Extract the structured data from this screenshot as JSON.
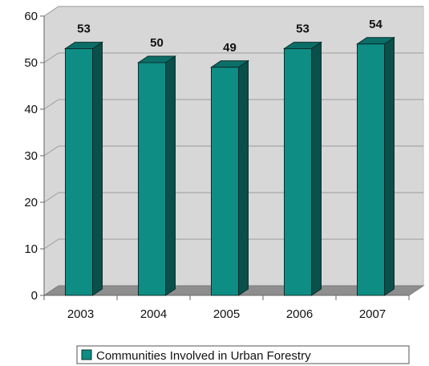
{
  "chart_data": {
    "type": "bar",
    "title": "",
    "xlabel": "",
    "ylabel": "",
    "categories": [
      "2003",
      "2004",
      "2005",
      "2006",
      "2007"
    ],
    "series": [
      {
        "name": "Communities Involved in Urban Forestry",
        "values": [
          53,
          50,
          49,
          53,
          54
        ]
      }
    ],
    "ylim": [
      0,
      60
    ],
    "yticks": [
      "0",
      "10",
      "20",
      "30",
      "40",
      "50",
      "60"
    ],
    "data_labels": [
      "53",
      "50",
      "49",
      "53",
      "54"
    ],
    "grid": true,
    "three_d": true,
    "legend_position": "bottom",
    "colors": {
      "bar_front": "#0e8d84",
      "bar_side": "#0a4f4a",
      "bar_top": "#0b6f68",
      "bar_outline": "#0a2f2c",
      "wall": "#d7d7d7",
      "floor": "#8e8e8e",
      "gridline": "#9b9b9b",
      "axis": "#666666"
    }
  }
}
